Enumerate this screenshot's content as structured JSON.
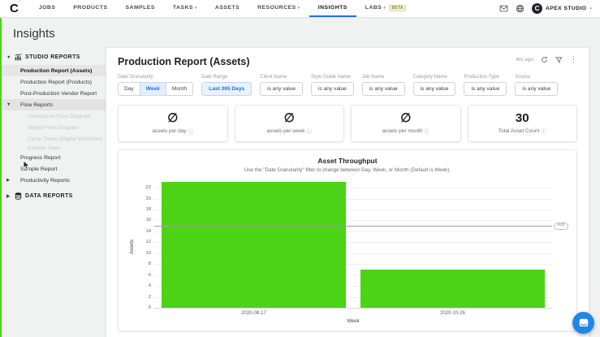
{
  "brand": {
    "logo": "C"
  },
  "nav": {
    "items": [
      {
        "label": "JOBS",
        "caret": false,
        "active": false
      },
      {
        "label": "PRODUCTS",
        "caret": false,
        "active": false
      },
      {
        "label": "SAMPLES",
        "caret": false,
        "active": false
      },
      {
        "label": "TASKS",
        "caret": true,
        "active": false
      },
      {
        "label": "ASSETS",
        "caret": false,
        "active": false
      },
      {
        "label": "RESOURCES",
        "caret": true,
        "active": false
      },
      {
        "label": "INSIGHTS",
        "caret": false,
        "active": true
      },
      {
        "label": "LABS",
        "caret": true,
        "active": false,
        "badge": "BETA"
      }
    ],
    "account_name": "APEX STUDIO"
  },
  "page": {
    "title": "Insights"
  },
  "sidebar": {
    "studio_section_label": "STUDIO REPORTS",
    "data_section_label": "DATA REPORTS",
    "items": [
      {
        "label": "Production Report (Assets)",
        "state": "active"
      },
      {
        "label": "Production Report (Products)",
        "state": "normal"
      },
      {
        "label": "Post-Production Vendor Report",
        "state": "normal"
      },
      {
        "label": "Flow Reports",
        "state": "hover",
        "caret": "down"
      },
      {
        "label": "Cumulative Flow Diagram",
        "state": "faded"
      },
      {
        "label": "Digital Flow Diagram",
        "state": "faded"
      },
      {
        "label": "Cycle Times (Digital Workflow)",
        "state": "faded"
      },
      {
        "label": "Kanban View",
        "state": "faded-squeeze"
      },
      {
        "label": "Progress Report",
        "state": "normal"
      },
      {
        "label": "Sample Report",
        "state": "normal"
      },
      {
        "label": "Productivity Reports",
        "state": "normal",
        "caret": "right"
      }
    ]
  },
  "report": {
    "title": "Production Report (Assets)",
    "updated": "4m ago",
    "granularity": {
      "label": "Date Granularity",
      "options": [
        "Day",
        "Week",
        "Month"
      ],
      "selected": "Week"
    },
    "date_range": {
      "label": "Date Range",
      "value": "Last 365 Days"
    },
    "filters": [
      {
        "label": "Client Name",
        "value": "is any value"
      },
      {
        "label": "Style Guide Name",
        "value": "is any value"
      },
      {
        "label": "Job Name",
        "value": "is any value"
      },
      {
        "label": "Category Name",
        "value": "is any value"
      },
      {
        "label": "Production Type",
        "value": "is any value"
      },
      {
        "label": "Source",
        "value": "is any value"
      }
    ],
    "kpis": [
      {
        "value": "∅",
        "label": "assets per day"
      },
      {
        "value": "∅",
        "label": "assets per week"
      },
      {
        "value": "∅",
        "label": "assets per month"
      },
      {
        "value": "30",
        "label": "Total Asset Count"
      }
    ]
  },
  "chart_data": {
    "type": "bar",
    "title": "Asset Throughput",
    "subtitle": "Use the \"Date Granularity\" filter to change between Day, Week, or Month (Default is Week).",
    "categories": [
      "2020-08-17",
      "2020-10-26"
    ],
    "values": [
      23,
      7
    ],
    "xlabel": "Week",
    "ylabel": "Assets",
    "ylim": [
      0,
      23.2
    ],
    "yticks": [
      0,
      2,
      4,
      6,
      8,
      10,
      12,
      14,
      16,
      18,
      20,
      22
    ],
    "average_line": {
      "value": 15,
      "label": "AVG"
    },
    "bar_color": "#4cd316",
    "grid": true,
    "legend": "none"
  },
  "colors": {
    "accent_blue": "#1a73e8",
    "bar_green": "#4cd316",
    "chat_blue": "#1f87e8",
    "edge_green": "#4cd316"
  }
}
